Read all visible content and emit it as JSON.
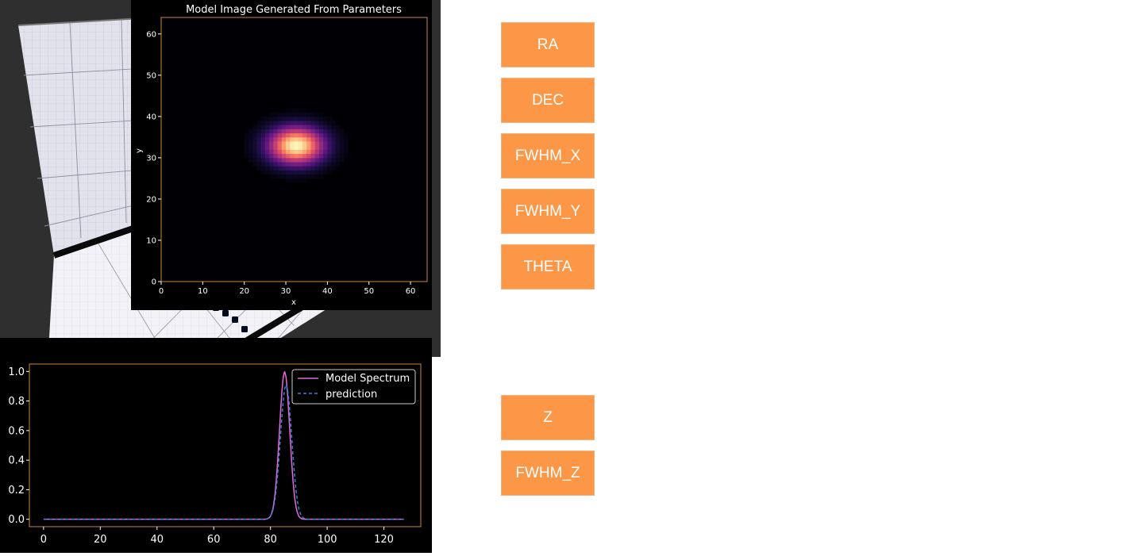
{
  "image_plot": {
    "title": "Model Image Generated From Parameters",
    "xlabel": "x",
    "ylabel": "y",
    "xlim": [
      0,
      64
    ],
    "ylim": [
      0,
      64
    ],
    "xticks": [
      "0",
      "10",
      "20",
      "30",
      "40",
      "50",
      "60"
    ],
    "yticks": [
      "0",
      "10",
      "20",
      "30",
      "40",
      "50",
      "60"
    ],
    "colormap": "magma",
    "source": {
      "center_x": 32,
      "center_y": 32.5,
      "sigma_x": 4.6,
      "sigma_y": 3.1
    },
    "frame_color": "#c8873a"
  },
  "param_buttons": {
    "ra": "RA",
    "dec": "DEC",
    "fwhm_x": "FWHM_X",
    "fwhm_y": "FWHM_Y",
    "theta": "THETA",
    "z": "Z",
    "fwhm_z": "FWHM_Z"
  },
  "chart_data": {
    "type": "line",
    "xlim": [
      -5,
      133
    ],
    "ylim": [
      -0.05,
      1.05
    ],
    "xticks": [
      "0",
      "20",
      "40",
      "60",
      "80",
      "100",
      "120"
    ],
    "yticks": [
      "0.0",
      "0.2",
      "0.4",
      "0.6",
      "0.8",
      "1.0"
    ],
    "legend_position": "top-right",
    "series": [
      {
        "name": "Model Spectrum",
        "style": "solid",
        "color": "#e36bd9",
        "peak_x": 85,
        "peak_y": 1.0,
        "sigma": 1.8,
        "x_range": [
          0,
          127
        ]
      },
      {
        "name": "prediction",
        "style": "dashed",
        "color": "#3a7fd4",
        "peak_x": 85.5,
        "peak_y": 0.91,
        "sigma": 2.0,
        "x_range": [
          0,
          127
        ]
      }
    ]
  },
  "voxel_view": {
    "background": "#2f2f2f",
    "colors": {
      "outer": "#0a1aa8",
      "mid": "#2434d4",
      "core": "#e00000",
      "core_halo": "#c40000",
      "marker": "#050a1e"
    }
  }
}
